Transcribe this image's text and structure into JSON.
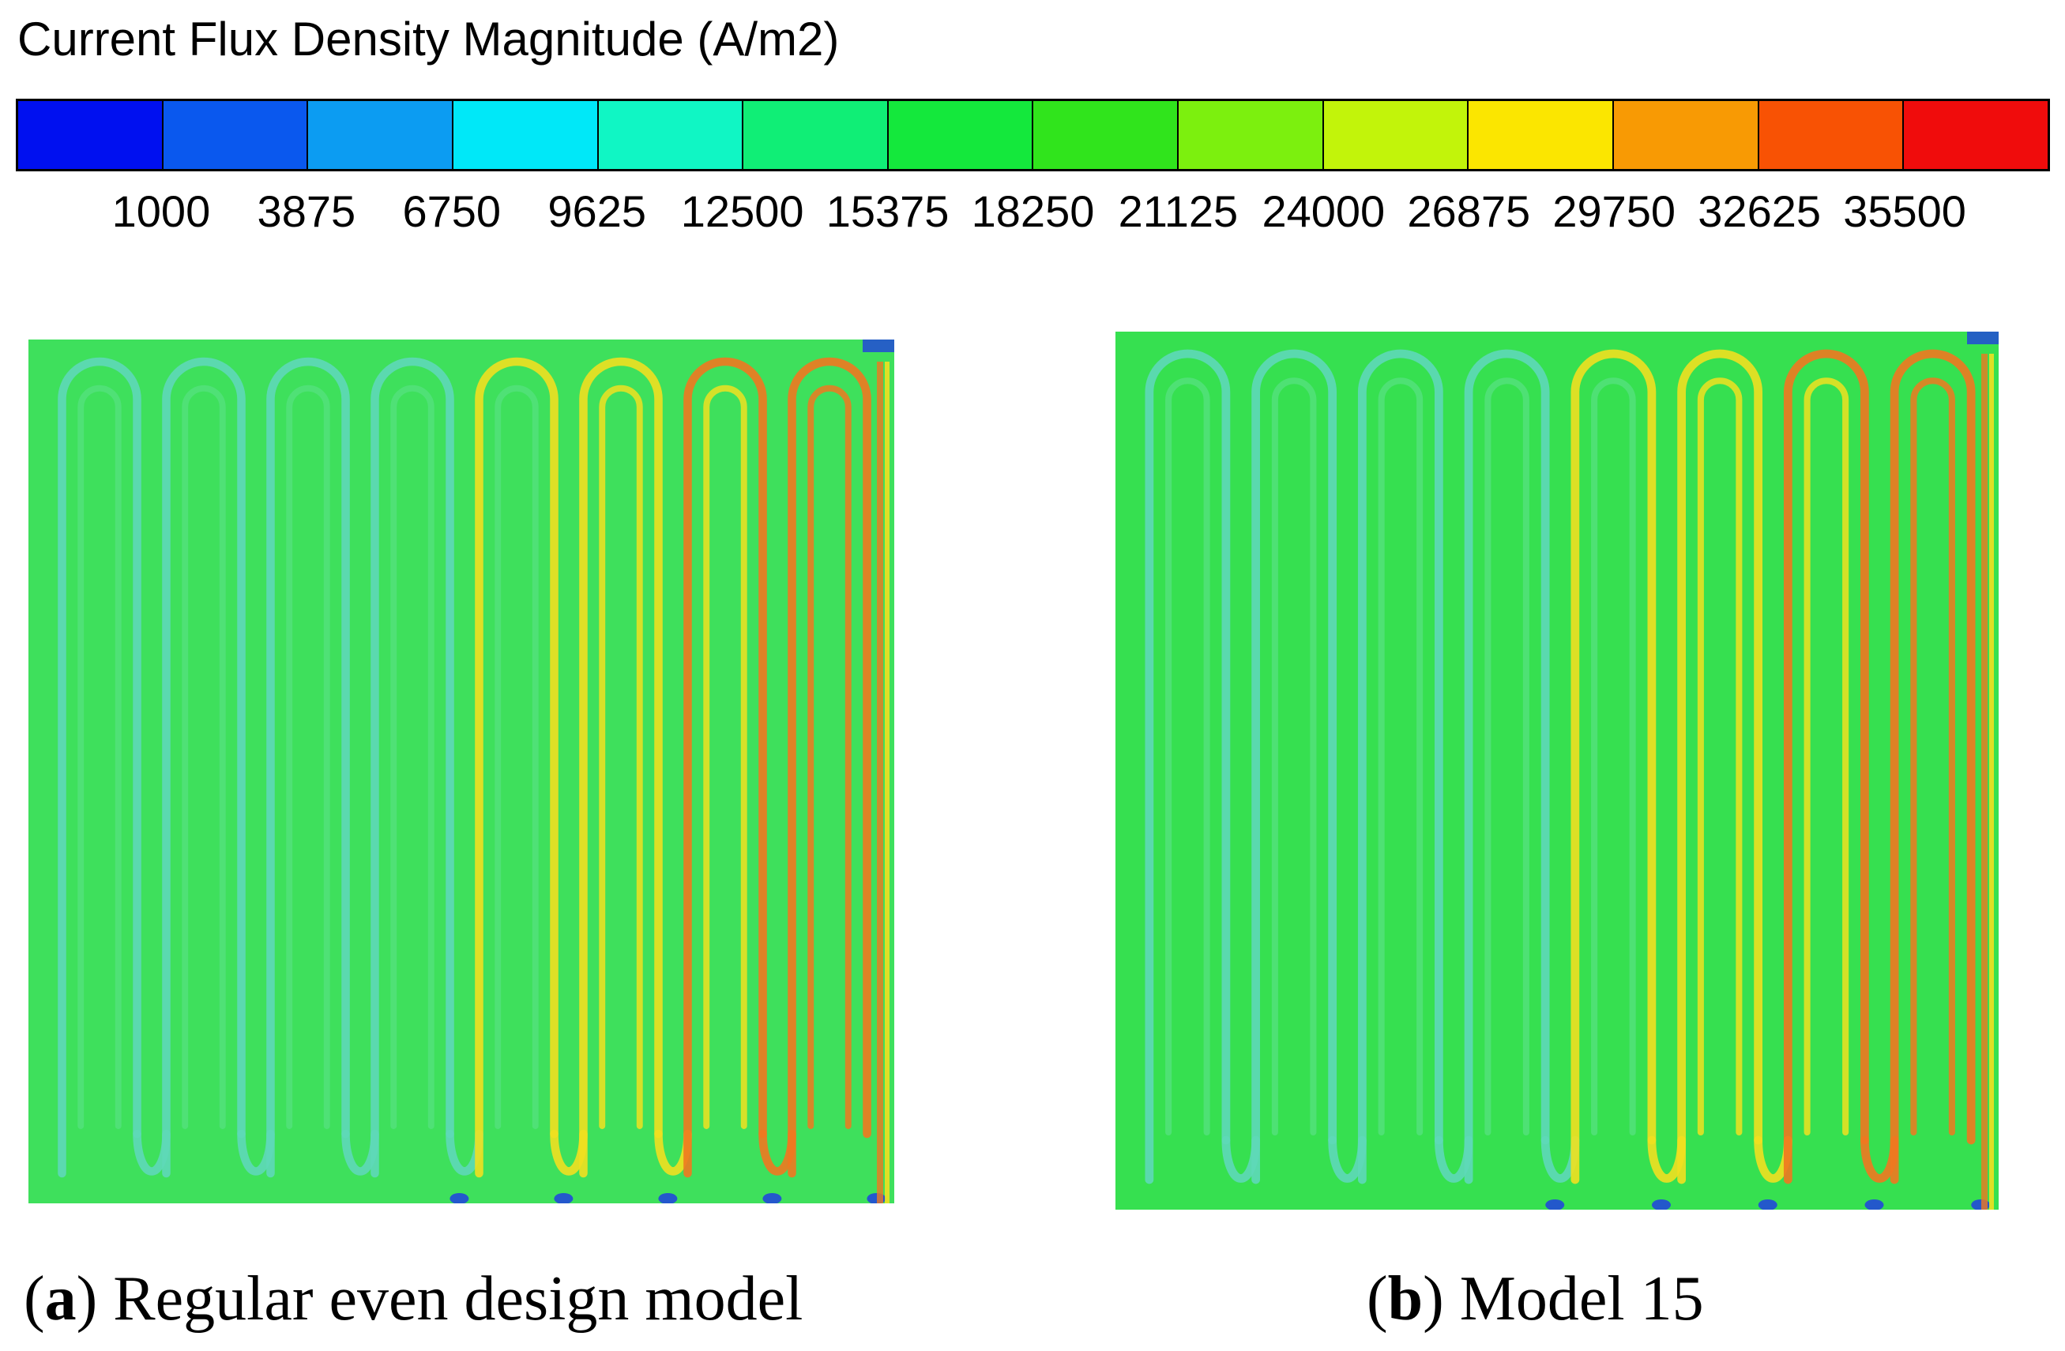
{
  "colorbar": {
    "title": "Current Flux Density Magnitude (A/m2)",
    "ticks": [
      "1000",
      "3875",
      "6750",
      "9625",
      "12500",
      "15375",
      "18250",
      "21125",
      "24000",
      "26875",
      "29750",
      "32625",
      "35500"
    ],
    "colors": [
      "#0010f0",
      "#0a58ee",
      "#0c9cf2",
      "#00e8f8",
      "#10f6c4",
      "#10ee76",
      "#14e83c",
      "#30e41c",
      "#7cf00e",
      "#c2f40a",
      "#fbe600",
      "#f89a04",
      "#f85204",
      "#f00c0c"
    ]
  },
  "panels": [
    {
      "letter": "a",
      "caption_text": ") Regular even design model",
      "field_value_note": "",
      "colors": {
        "base": "#3ee05c",
        "turn_light": "#5ed8b8",
        "hot": "#f0e020",
        "hot2": "#f07820",
        "edge": "#2040e0"
      }
    },
    {
      "letter": "b",
      "caption_text": ") Model 15",
      "colors": {
        "base": "#36e050",
        "turn_light": "#5ed8b8",
        "hot": "#f0e020",
        "hot2": "#f07820",
        "edge": "#2040e0"
      }
    }
  ]
}
